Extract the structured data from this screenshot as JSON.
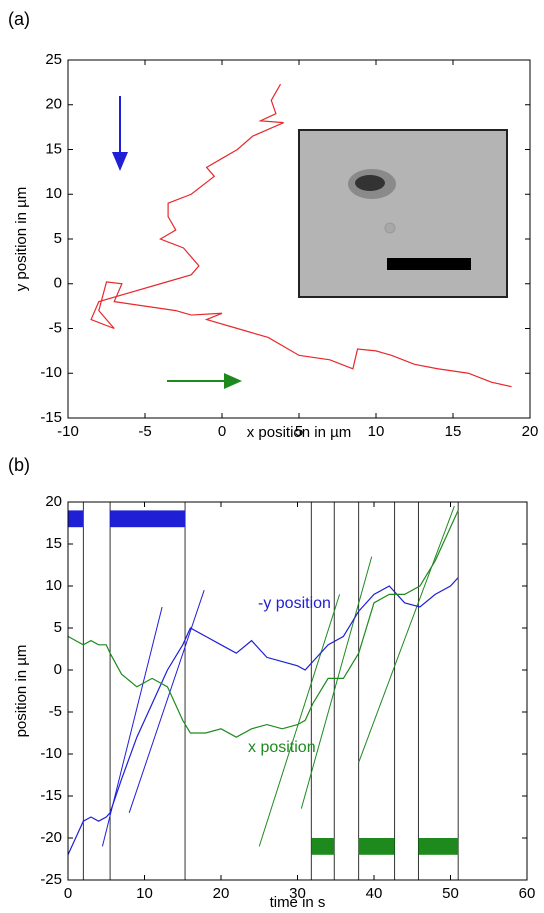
{
  "chart_data": [
    {
      "type": "line",
      "panel": "(a)",
      "xlabel": "x position in µm",
      "ylabel": "y position in µm",
      "xlim": [
        -10,
        20
      ],
      "ylim": [
        -15,
        25
      ],
      "xticks": [
        -10,
        -5,
        0,
        5,
        10,
        15,
        20
      ],
      "yticks": [
        -15,
        -10,
        -5,
        0,
        5,
        10,
        15,
        20,
        25
      ],
      "series": [
        {
          "color": "#e8282b",
          "x": [
            3.8,
            3.2,
            3.5,
            2.5,
            4,
            2,
            1,
            0,
            -1,
            -0.5,
            -2,
            -3.5,
            -3.5,
            -3,
            -4,
            -2.5,
            -1.5,
            -2,
            -4,
            -6,
            -8,
            -8.5,
            -7,
            -8,
            -7.5,
            -6.5,
            -7,
            -5,
            -3,
            -2,
            0,
            -1,
            1,
            3,
            5,
            7,
            8.5,
            8.8,
            10,
            11,
            12.5,
            14,
            16,
            17.5,
            18.8
          ],
          "values": [
            22.3,
            20.5,
            19,
            18.2,
            18,
            16.5,
            15,
            14,
            13,
            12,
            10,
            9,
            7.5,
            6,
            5,
            4,
            2,
            1,
            0,
            -1,
            -2,
            -4,
            -5,
            -3,
            0.2,
            0,
            -2,
            -2.5,
            -3,
            -3.5,
            -3.3,
            -4,
            -5,
            -6,
            -8,
            -8.5,
            -9.5,
            -7.3,
            -7.5,
            -8,
            -9,
            -9.5,
            -10,
            -11,
            -11.5
          ]
        }
      ]
    },
    {
      "type": "line",
      "panel": "(b)",
      "xlabel": "time in s",
      "ylabel": "position in µm",
      "xlim": [
        0,
        60
      ],
      "ylim": [
        -25,
        20
      ],
      "xticks": [
        0,
        10,
        20,
        30,
        40,
        50,
        60
      ],
      "yticks": [
        -25,
        -20,
        -15,
        -10,
        -5,
        0,
        5,
        10,
        15,
        20
      ],
      "x": [
        0,
        1,
        2,
        3,
        4,
        5,
        5.5,
        7,
        9,
        11,
        13,
        15,
        16,
        18,
        20,
        22,
        24,
        26,
        28,
        30,
        31,
        32,
        34,
        36,
        38,
        40,
        42,
        44,
        46,
        48,
        50,
        51
      ],
      "series": [
        {
          "name": "-y position",
          "color": "#1f1fd6",
          "values": [
            -22,
            -20,
            -18,
            -17.5,
            -18,
            -17.5,
            -17,
            -13,
            -8,
            -4,
            0,
            3,
            5,
            4,
            3,
            2,
            3.5,
            1.5,
            1,
            0.5,
            0,
            1,
            3,
            4,
            7,
            9,
            10,
            8,
            7.5,
            9,
            10,
            11
          ]
        },
        {
          "name": "x position",
          "color": "#1e8a1e",
          "values": [
            4,
            3.5,
            3,
            3.5,
            3,
            3,
            2,
            -0.5,
            -2,
            -1,
            -2,
            -6,
            -7.5,
            -7.5,
            -7,
            -8,
            -7,
            -6.5,
            -7,
            -6.5,
            -6,
            -4,
            -1,
            -1,
            2,
            8,
            9,
            9,
            10,
            13,
            17,
            19
          ]
        }
      ],
      "fit_lines": [
        {
          "color": "#1f1fd6",
          "x": [
            4.5,
            12.3
          ],
          "values": [
            -21,
            7.5
          ]
        },
        {
          "color": "#1f1fd6",
          "x": [
            8,
            17.8
          ],
          "values": [
            -17,
            9.5
          ]
        },
        {
          "color": "#1e8a1e",
          "x": [
            25,
            35.5
          ],
          "values": [
            -21,
            9
          ]
        },
        {
          "color": "#1e8a1e",
          "x": [
            30.5,
            39.7
          ],
          "values": [
            -16.5,
            13.5
          ]
        },
        {
          "color": "#1e8a1e",
          "x": [
            38,
            50.5
          ],
          "values": [
            -11,
            19.5
          ]
        }
      ],
      "event_lines": [
        2,
        5.5,
        15.3,
        31.8,
        34.8,
        38,
        42.7,
        45.8,
        51
      ],
      "intervals": [
        {
          "color": "#1f1fd6",
          "x": [
            0,
            2
          ],
          "y": [
            17,
            19
          ]
        },
        {
          "color": "#1f1fd6",
          "x": [
            5.5,
            15.3
          ],
          "y": [
            17,
            19
          ]
        },
        {
          "color": "#1e8a1e",
          "x": [
            31.8,
            34.8
          ],
          "y": [
            -22,
            -20
          ]
        },
        {
          "color": "#1e8a1e",
          "x": [
            38,
            42.7
          ],
          "y": [
            -22,
            -20
          ]
        },
        {
          "color": "#1e8a1e",
          "x": [
            45.8,
            51
          ],
          "y": [
            -22,
            -20
          ]
        }
      ]
    }
  ]
}
